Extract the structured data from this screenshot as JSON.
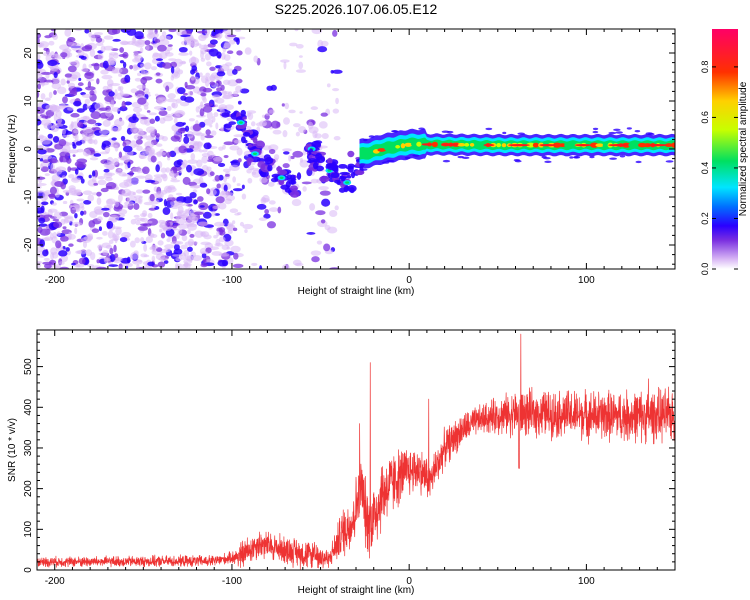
{
  "figure": {
    "title": "S225.2026.107.06.05.E12"
  },
  "chart_data": [
    {
      "type": "heatmap",
      "title": "S225.2026.107.06.05.E12",
      "xlabel": "Height of straight line (km)",
      "ylabel": "Frequency (Hz)",
      "xlim": [
        -210,
        150
      ],
      "ylim": [
        -25,
        25
      ],
      "xticks": [
        -200,
        -100,
        0,
        100
      ],
      "yticks": [
        -20,
        -10,
        0,
        10,
        20
      ],
      "colorbar": {
        "label": "Normalized spectral amplitude",
        "range": [
          0.0,
          0.95
        ],
        "ticks": [
          0.0,
          0.2,
          0.4,
          0.6,
          0.8
        ],
        "colors": [
          "#ffffff",
          "#d9b8f5",
          "#7a2fe0",
          "#2a00ff",
          "#0070ff",
          "#00e5ff",
          "#00e060",
          "#c8ff00",
          "#ffd000",
          "#ff3000",
          "#ff0066"
        ]
      },
      "carrier_track": [
        {
          "x": -25,
          "f": -1.0
        },
        {
          "x": -15,
          "f": 0.0
        },
        {
          "x": 0,
          "f": 1.0
        },
        {
          "x": 50,
          "f": 0.8
        },
        {
          "x": 100,
          "f": 0.8
        },
        {
          "x": 150,
          "f": 0.8
        }
      ],
      "trace_blobs": [
        {
          "x": -95,
          "f": 5.5
        },
        {
          "x": -90,
          "f": 1.5
        },
        {
          "x": -87,
          "f": -1.0
        },
        {
          "x": -80,
          "f": -3.5
        },
        {
          "x": -72,
          "f": -6.0
        },
        {
          "x": -65,
          "f": -7.5
        },
        {
          "x": -55,
          "f": 0.0
        },
        {
          "x": -52,
          "f": -2.5
        },
        {
          "x": -45,
          "f": -4.5
        },
        {
          "x": -40,
          "f": -5.5
        },
        {
          "x": -35,
          "f": -7.0
        },
        {
          "x": -30,
          "f": -3.0
        }
      ]
    },
    {
      "type": "line",
      "xlabel": "Height of straight line (km)",
      "ylabel": "SNR (10 * v/v)",
      "xlim": [
        -210,
        150
      ],
      "ylim": [
        0,
        590
      ],
      "xticks": [
        -200,
        -100,
        0,
        100
      ],
      "yticks": [
        0,
        100,
        200,
        300,
        400,
        500
      ],
      "color": "#ee3333",
      "envelope": [
        {
          "x": -210,
          "y": 20
        },
        {
          "x": -110,
          "y": 22
        },
        {
          "x": -95,
          "y": 35
        },
        {
          "x": -85,
          "y": 65
        },
        {
          "x": -75,
          "y": 55
        },
        {
          "x": -65,
          "y": 45
        },
        {
          "x": -55,
          "y": 35
        },
        {
          "x": -45,
          "y": 28
        },
        {
          "x": -38,
          "y": 90
        },
        {
          "x": -32,
          "y": 120
        },
        {
          "x": -27,
          "y": 210
        },
        {
          "x": -24,
          "y": 120
        },
        {
          "x": -20,
          "y": 130
        },
        {
          "x": -15,
          "y": 190
        },
        {
          "x": -8,
          "y": 220
        },
        {
          "x": -2,
          "y": 240
        },
        {
          "x": 5,
          "y": 250
        },
        {
          "x": 12,
          "y": 220
        },
        {
          "x": 20,
          "y": 300
        },
        {
          "x": 30,
          "y": 345
        },
        {
          "x": 40,
          "y": 370
        },
        {
          "x": 50,
          "y": 380
        },
        {
          "x": 60,
          "y": 385
        },
        {
          "x": 80,
          "y": 385
        },
        {
          "x": 100,
          "y": 380
        },
        {
          "x": 120,
          "y": 378
        },
        {
          "x": 150,
          "y": 380
        }
      ],
      "spikes": [
        {
          "x": -28,
          "y": 360
        },
        {
          "x": -22,
          "y": 510
        },
        {
          "x": 11,
          "y": 420
        },
        {
          "x": 63,
          "y": 580
        },
        {
          "x": 135,
          "y": 470
        }
      ],
      "noise": [
        {
          "x": -210,
          "amp": 12
        },
        {
          "x": -100,
          "amp": 14
        },
        {
          "x": -95,
          "amp": 35
        },
        {
          "x": -50,
          "amp": 35
        },
        {
          "x": -45,
          "amp": 20
        },
        {
          "x": -38,
          "amp": 60
        },
        {
          "x": -20,
          "amp": 95
        },
        {
          "x": 0,
          "amp": 60
        },
        {
          "x": 20,
          "amp": 45
        },
        {
          "x": 40,
          "amp": 35
        },
        {
          "x": 60,
          "amp": 55
        },
        {
          "x": 100,
          "amp": 60
        },
        {
          "x": 150,
          "amp": 65
        }
      ]
    }
  ]
}
